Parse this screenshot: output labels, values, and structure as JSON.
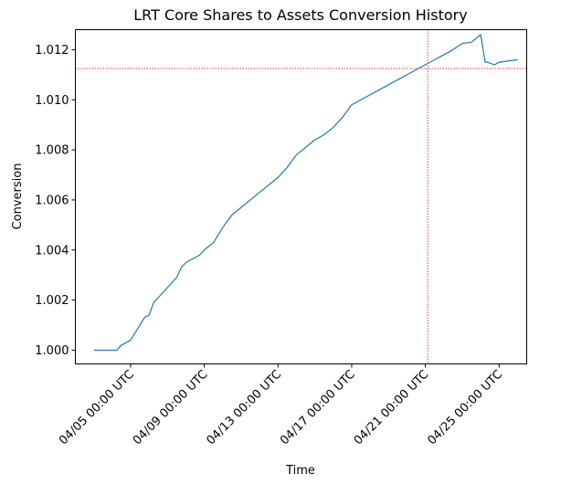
{
  "chart_data": {
    "type": "line",
    "title": "LRT Core Shares to Assets Conversion History",
    "xlabel": "Time",
    "ylabel": "Conversion",
    "x_is_date": true,
    "xlim": [
      "2025-04-02T00:00",
      "2025-04-26T12:00"
    ],
    "ylim": [
      0.99945,
      1.0128
    ],
    "x_ticks": [
      {
        "value": "2025-04-05T00:00",
        "label": "04/05 00:00 UTC"
      },
      {
        "value": "2025-04-09T00:00",
        "label": "04/09 00:00 UTC"
      },
      {
        "value": "2025-04-13T00:00",
        "label": "04/13 00:00 UTC"
      },
      {
        "value": "2025-04-17T00:00",
        "label": "04/17 00:00 UTC"
      },
      {
        "value": "2025-04-21T00:00",
        "label": "04/21 00:00 UTC"
      },
      {
        "value": "2025-04-25T00:00",
        "label": "04/25 00:00 UTC"
      }
    ],
    "y_ticks": [
      {
        "value": 1.0,
        "label": "1.000"
      },
      {
        "value": 1.002,
        "label": "1.002"
      },
      {
        "value": 1.004,
        "label": "1.004"
      },
      {
        "value": 1.006,
        "label": "1.006"
      },
      {
        "value": 1.008,
        "label": "1.008"
      },
      {
        "value": 1.01,
        "label": "1.010"
      },
      {
        "value": 1.012,
        "label": "1.012"
      }
    ],
    "grid": false,
    "colors": {
      "series": "#1f77b4",
      "reference": "#ff0000"
    },
    "series": [
      {
        "x": [
          "2025-04-03T00:00",
          "2025-04-04T06:00",
          "2025-04-04T12:00",
          "2025-04-04T18:00",
          "2025-04-05T00:00",
          "2025-04-05T06:00",
          "2025-04-05T12:00",
          "2025-04-05T18:00",
          "2025-04-06T00:00",
          "2025-04-06T06:00",
          "2025-04-06T12:00",
          "2025-04-06T18:00",
          "2025-04-07T00:00",
          "2025-04-07T06:00",
          "2025-04-07T12:00",
          "2025-04-07T18:00",
          "2025-04-08T00:00",
          "2025-04-08T06:00",
          "2025-04-08T12:00",
          "2025-04-08T18:00",
          "2025-04-09T00:00",
          "2025-04-09T12:00",
          "2025-04-10T00:00",
          "2025-04-10T12:00",
          "2025-04-11T00:00",
          "2025-04-11T12:00",
          "2025-04-12T00:00",
          "2025-04-12T12:00",
          "2025-04-13T00:00",
          "2025-04-13T12:00",
          "2025-04-14T00:00",
          "2025-04-14T12:00",
          "2025-04-15T00:00",
          "2025-04-15T12:00",
          "2025-04-16T00:00",
          "2025-04-16T12:00",
          "2025-04-17T00:00",
          "2025-04-17T12:00",
          "2025-04-18T00:00",
          "2025-04-18T12:00",
          "2025-04-19T00:00",
          "2025-04-19T12:00",
          "2025-04-20T00:00",
          "2025-04-20T12:00",
          "2025-04-21T00:00",
          "2025-04-21T12:00",
          "2025-04-22T00:00",
          "2025-04-22T12:00",
          "2025-04-23T00:00",
          "2025-04-23T12:00",
          "2025-04-24T00:00",
          "2025-04-24T06:00",
          "2025-04-24T09:00",
          "2025-04-24T18:00",
          "2025-04-25T00:00",
          "2025-04-25T12:00",
          "2025-04-26T00:00"
        ],
        "y": [
          1.0,
          1.0,
          1.0002,
          1.0003,
          1.0004,
          1.0007,
          1.001,
          1.0013,
          1.0014,
          1.0019,
          1.0021,
          1.0023,
          1.0025,
          1.0027,
          1.0029,
          1.0033,
          1.0035,
          1.0036,
          1.0037,
          1.0038,
          1.004,
          1.0043,
          1.0049,
          1.0054,
          1.0057,
          1.006,
          1.0063,
          1.0066,
          1.0069,
          1.0073,
          1.0078,
          1.0081,
          1.0084,
          1.0086,
          1.0089,
          1.0093,
          1.0098,
          1.01,
          1.0102,
          1.0104,
          1.0106,
          1.0108,
          1.011,
          1.0112,
          1.0114,
          1.0116,
          1.0118,
          1.012,
          1.01225,
          1.0123,
          1.0126,
          1.0115,
          1.0115,
          1.0114,
          1.0115,
          1.01155,
          1.0116
        ]
      }
    ],
    "reference_lines": {
      "x": "2025-04-21T03:00",
      "y": 1.01125
    }
  }
}
